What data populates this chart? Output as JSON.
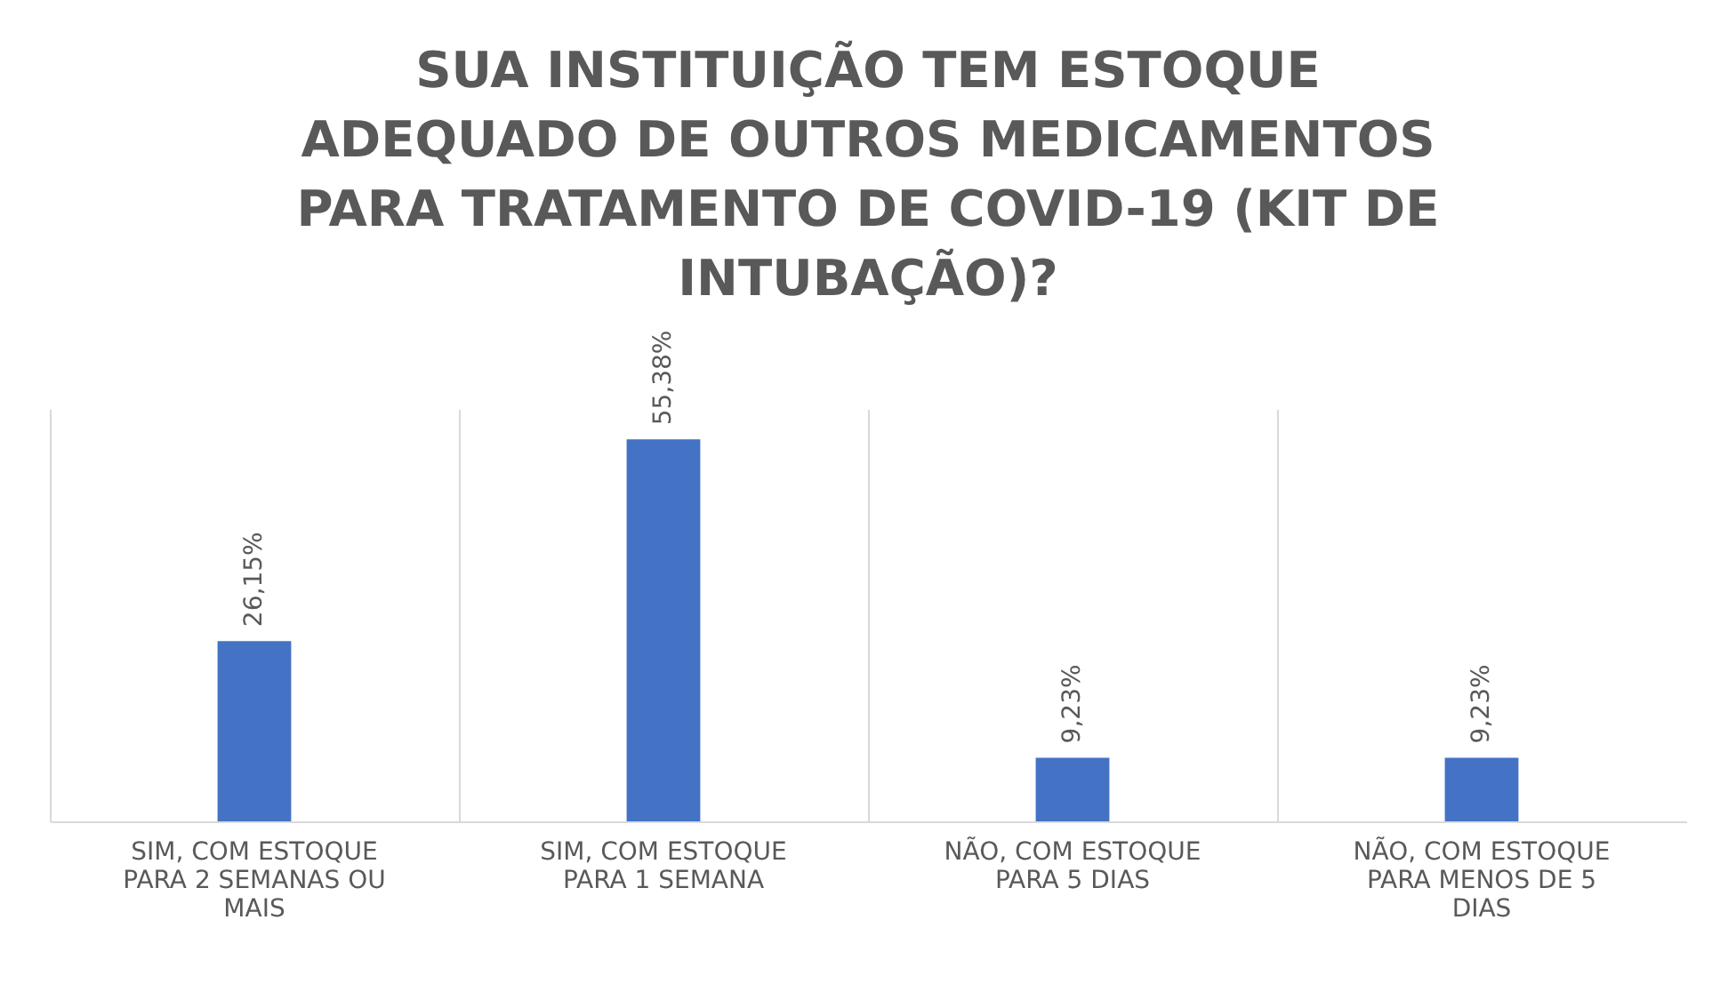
{
  "chart_data": {
    "type": "bar",
    "title": "SUA INSTITUIÇÃO TEM ESTOQUE ADEQUADO DE OUTROS MEDICAMENTOS PARA TRATAMENTO DE COVID-19 (KIT DE INTUBAÇÃO)?",
    "categories": [
      "SIM, COM ESTOQUE PARA 2 SEMANAS OU MAIS",
      "SIM, COM ESTOQUE PARA 1 SEMANA",
      "NÃO, COM ESTOQUE PARA 5 DIAS",
      "NÃO, COM ESTOQUE PARA MENOS DE 5 DIAS"
    ],
    "values": [
      26.15,
      55.38,
      9.23,
      9.23
    ],
    "value_labels": [
      "26,15%",
      "55,38%",
      "9,23%",
      "9,23%"
    ],
    "color": "#4472c4",
    "grid": "x"
  }
}
